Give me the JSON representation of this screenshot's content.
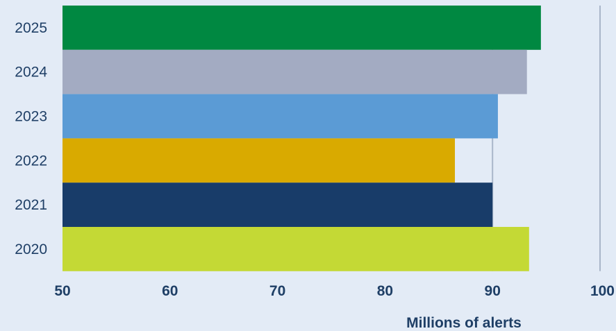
{
  "chart_data": {
    "type": "bar",
    "orientation": "horizontal",
    "categories": [
      "2025",
      "2024",
      "2023",
      "2022",
      "2021",
      "2020"
    ],
    "values": [
      94.5,
      93.2,
      90.5,
      86.5,
      90.0,
      93.4
    ],
    "colors": [
      "#008841",
      "#a3abc2",
      "#5b9bd5",
      "#d9aa00",
      "#183c69",
      "#c4d935"
    ],
    "xlabel": "Millions of alerts",
    "ylabel": "",
    "title": "",
    "xlim": [
      50,
      100
    ],
    "xticks": [
      "50",
      "60",
      "70",
      "80",
      "90",
      "100"
    ],
    "gridlines_at": [
      90,
      100
    ],
    "legend": "none"
  }
}
